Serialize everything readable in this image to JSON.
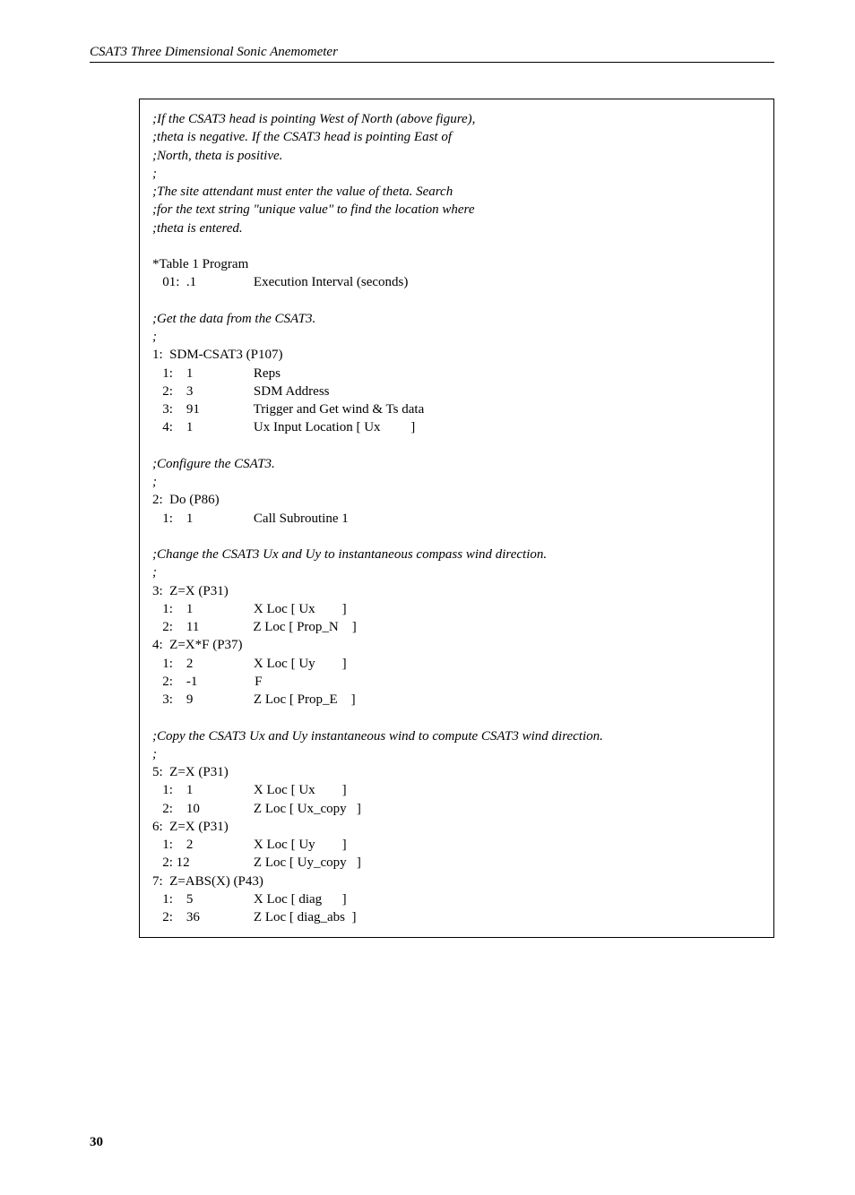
{
  "header": "CSAT3 Three Dimensional Sonic Anemometer",
  "page_number": "30",
  "code": {
    "comment1": [
      ";If the CSAT3 head is pointing West of North (above figure),",
      ";theta is negative. If the CSAT3 head is pointing East of",
      ";North, theta is positive.",
      ";",
      ";The site attendant must enter the value of theta. Search",
      ";for the text string \"unique value\" to find the location where",
      ";theta is entered."
    ],
    "block1": [
      "*Table 1 Program",
      "   01:  .1                 Execution Interval (seconds)"
    ],
    "comment2": [
      ";Get the data from the CSAT3.",
      ";"
    ],
    "block2": [
      "1:  SDM-CSAT3 (P107)",
      "   1:    1                  Reps",
      "   2:    3                  SDM Address",
      "   3:    91                Trigger and Get wind & Ts data",
      "   4:    1                  Ux Input Location [ Ux         ]"
    ],
    "comment3": [
      ";Configure the CSAT3.",
      ";"
    ],
    "block3": [
      "2:  Do (P86)",
      "   1:    1                  Call Subroutine 1"
    ],
    "comment4": [
      ";Change the CSAT3 Ux and Uy to instantaneous compass wind direction.",
      ";"
    ],
    "block4": [
      "3:  Z=X (P31)",
      "   1:    1                  X Loc [ Ux        ]",
      "   2:    11                Z Loc [ Prop_N    ]",
      "",
      "4:  Z=X*F (P37)",
      "   1:    2                  X Loc [ Uy        ]",
      "   2:    -1                 F",
      "   3:    9                  Z Loc [ Prop_E    ]"
    ],
    "comment5": [
      ";Copy the CSAT3 Ux and Uy instantaneous wind to compute CSAT3 wind direction.",
      ";"
    ],
    "block5": [
      "5:  Z=X (P31)",
      "   1:    1                  X Loc [ Ux        ]",
      "   2:    10                Z Loc [ Ux_copy   ]",
      "",
      "6:  Z=X (P31)",
      "   1:    2                  X Loc [ Uy        ]",
      "   2: 12                   Z Loc [ Uy_copy   ]",
      "",
      "7:  Z=ABS(X) (P43)",
      "   1:    5                  X Loc [ diag      ]",
      "   2:    36                Z Loc [ diag_abs  ]"
    ]
  }
}
